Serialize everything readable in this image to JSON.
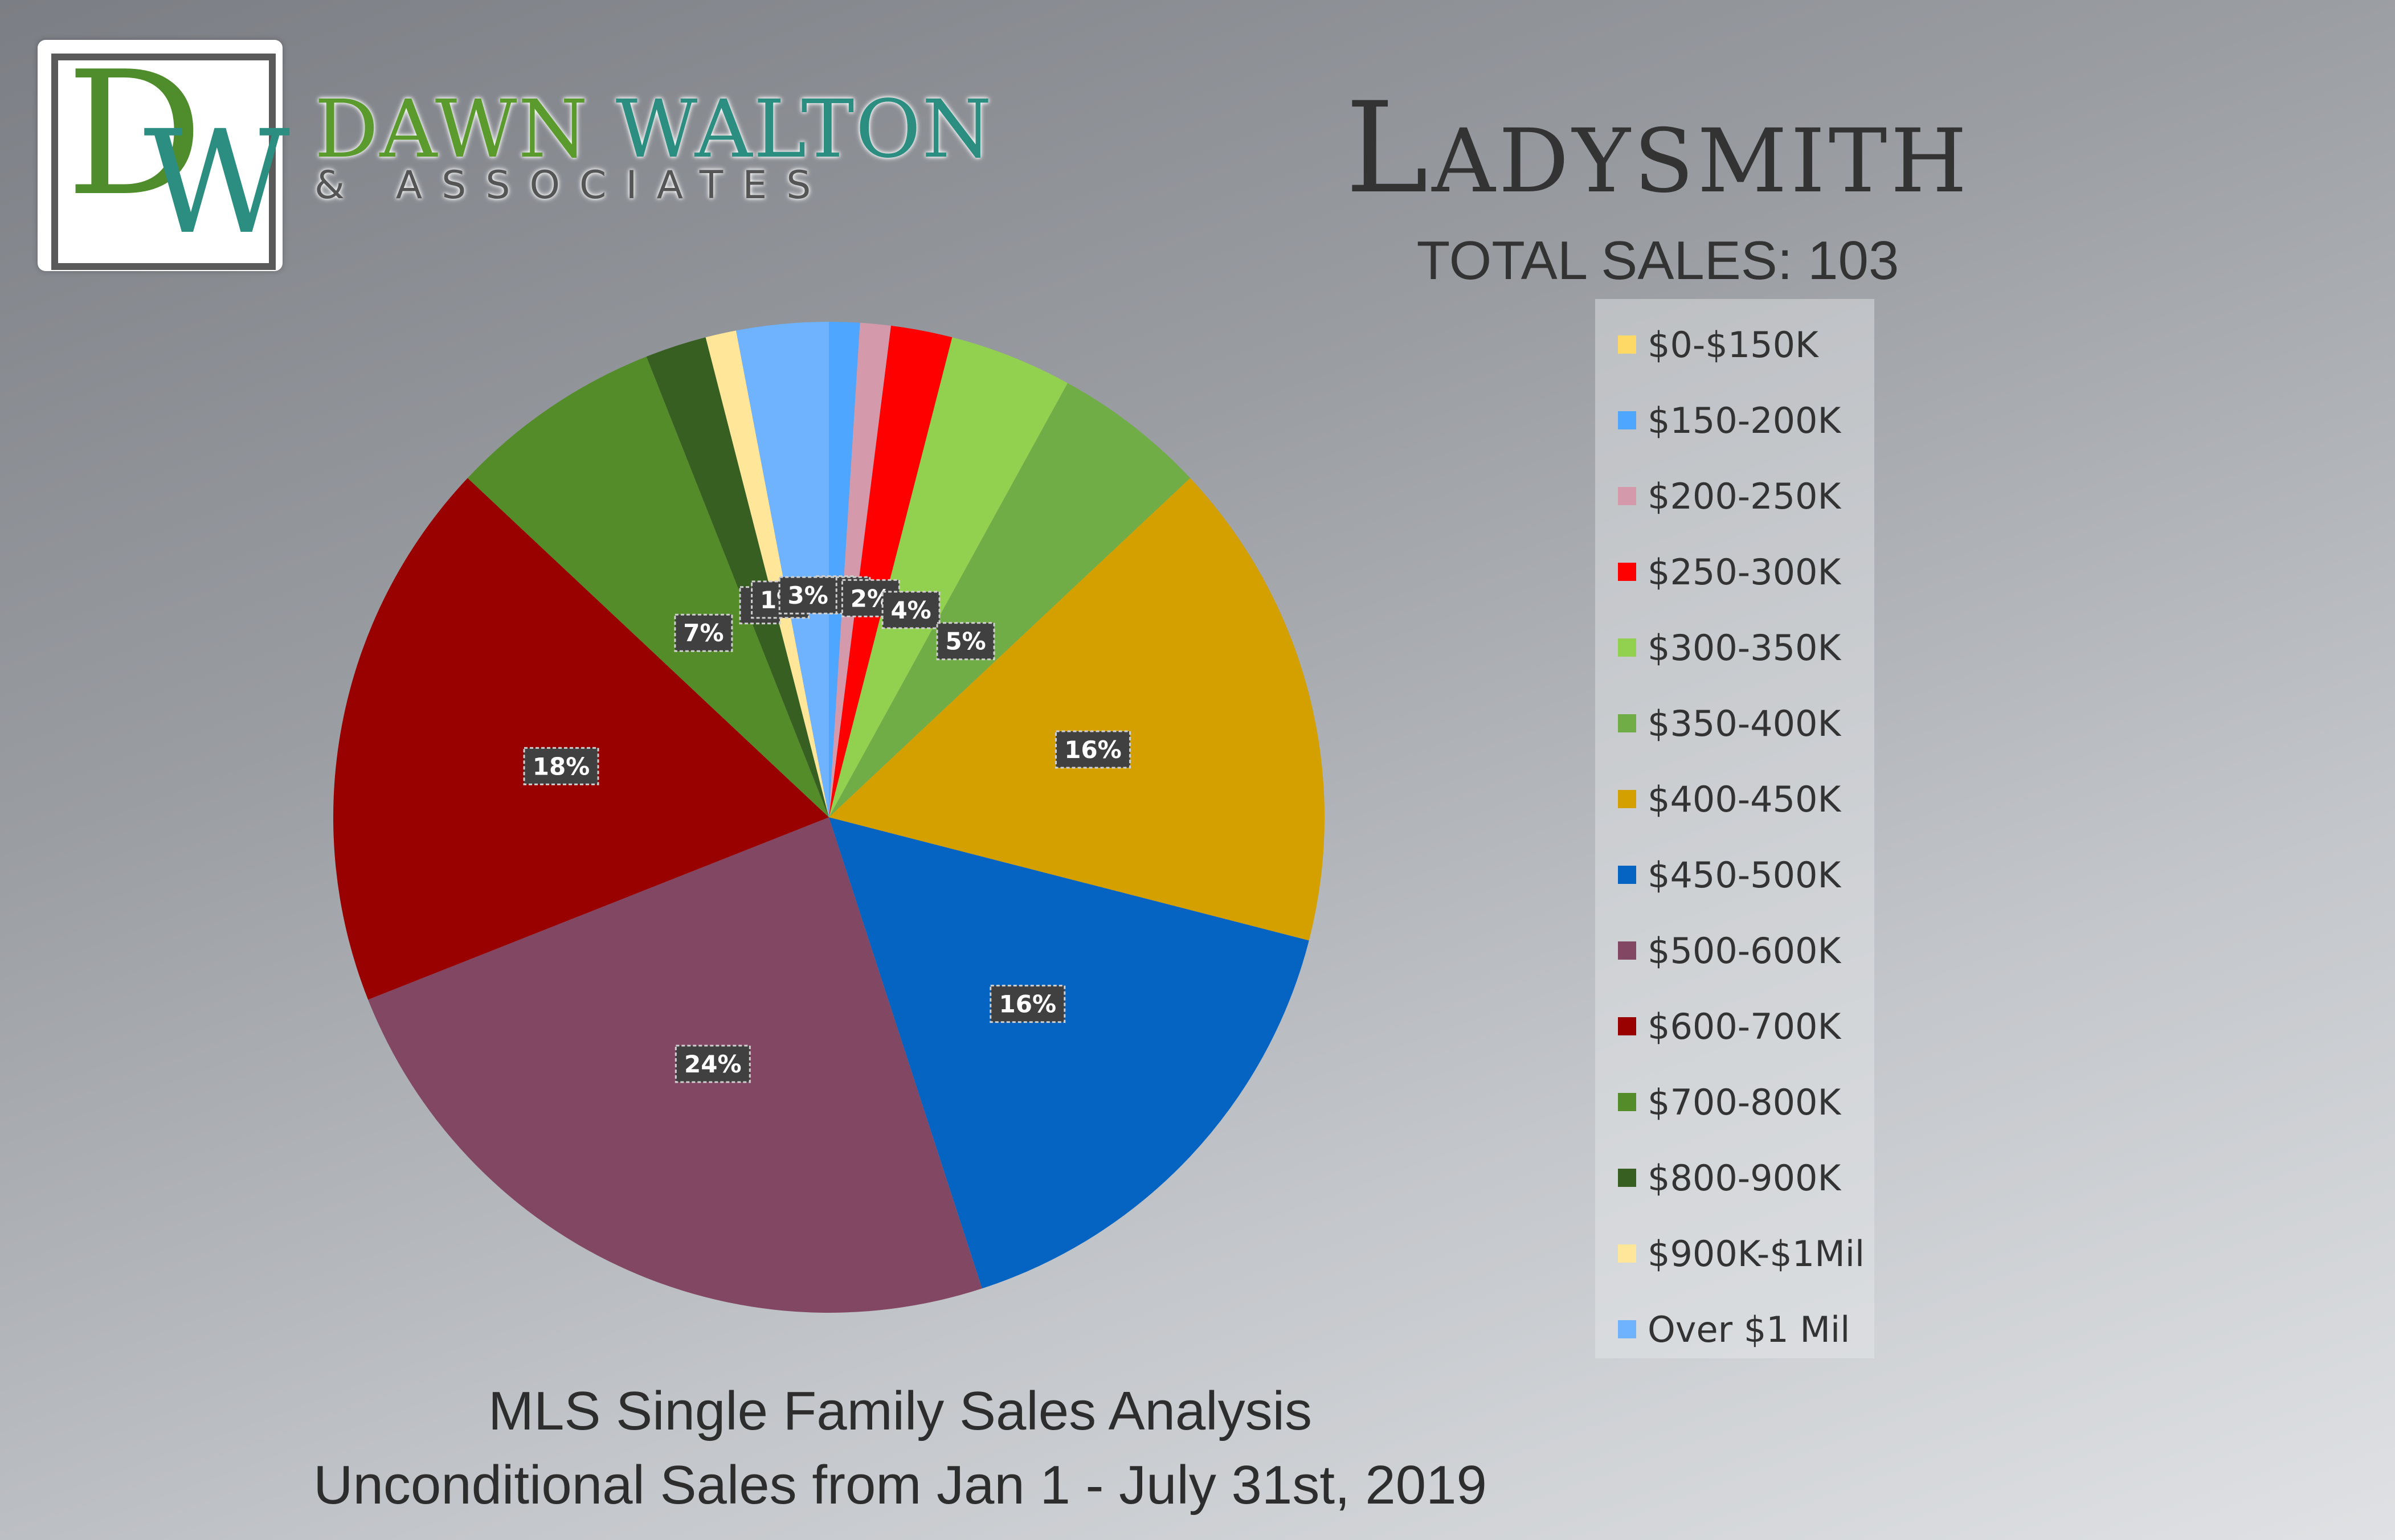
{
  "brand": {
    "logo_letters": "DW",
    "name_first": "DAWN",
    "name_last": "WALTON",
    "subtitle": "& ASSOCIATES"
  },
  "header": {
    "city": "Ladysmith",
    "total_sales": "TOTAL SALES: 103"
  },
  "footer": {
    "line1": "MLS Single Family Sales Analysis",
    "line2": "Unconditional Sales from Jan 1 - July 31st, 2019"
  },
  "chart_data": {
    "type": "pie",
    "start": "12 o'clock, clockwise",
    "legend_position": "right",
    "slices": [
      {
        "category": "$0-$150K",
        "value": 0,
        "label": "",
        "color": "#ffd966"
      },
      {
        "category": "$150-200K",
        "value": 1,
        "label": "1",
        "color": "#4ea6ff"
      },
      {
        "category": "$200-250K",
        "value": 1,
        "label": "1",
        "color": "#d49aac"
      },
      {
        "category": "$250-300K",
        "value": 2,
        "label": "2%",
        "color": "#ff0000"
      },
      {
        "category": "$300-350K",
        "value": 4,
        "label": "4%",
        "color": "#92d050"
      },
      {
        "category": "$350-400K",
        "value": 5,
        "label": "5%",
        "color": "#70ad47"
      },
      {
        "category": "$400-450K",
        "value": 16,
        "label": "16%",
        "color": "#d4a000"
      },
      {
        "category": "$450-500K",
        "value": 16,
        "label": "16%",
        "color": "#0563c1"
      },
      {
        "category": "$500-600K",
        "value": 24,
        "label": "24%",
        "color": "#824763"
      },
      {
        "category": "$600-700K",
        "value": 18,
        "label": "18%",
        "color": "#990000"
      },
      {
        "category": "$700-800K",
        "value": 7,
        "label": "7%",
        "color": "#548c2a"
      },
      {
        "category": "$800-900K",
        "value": 2,
        "label": "2",
        "color": "#375f22"
      },
      {
        "category": "$900K-$1Mil",
        "value": 1,
        "label": "1%",
        "color": "#ffe699"
      },
      {
        "category": "Over $1 Mil",
        "value": 3,
        "label": "3%",
        "color": "#6fb3ff"
      }
    ]
  }
}
